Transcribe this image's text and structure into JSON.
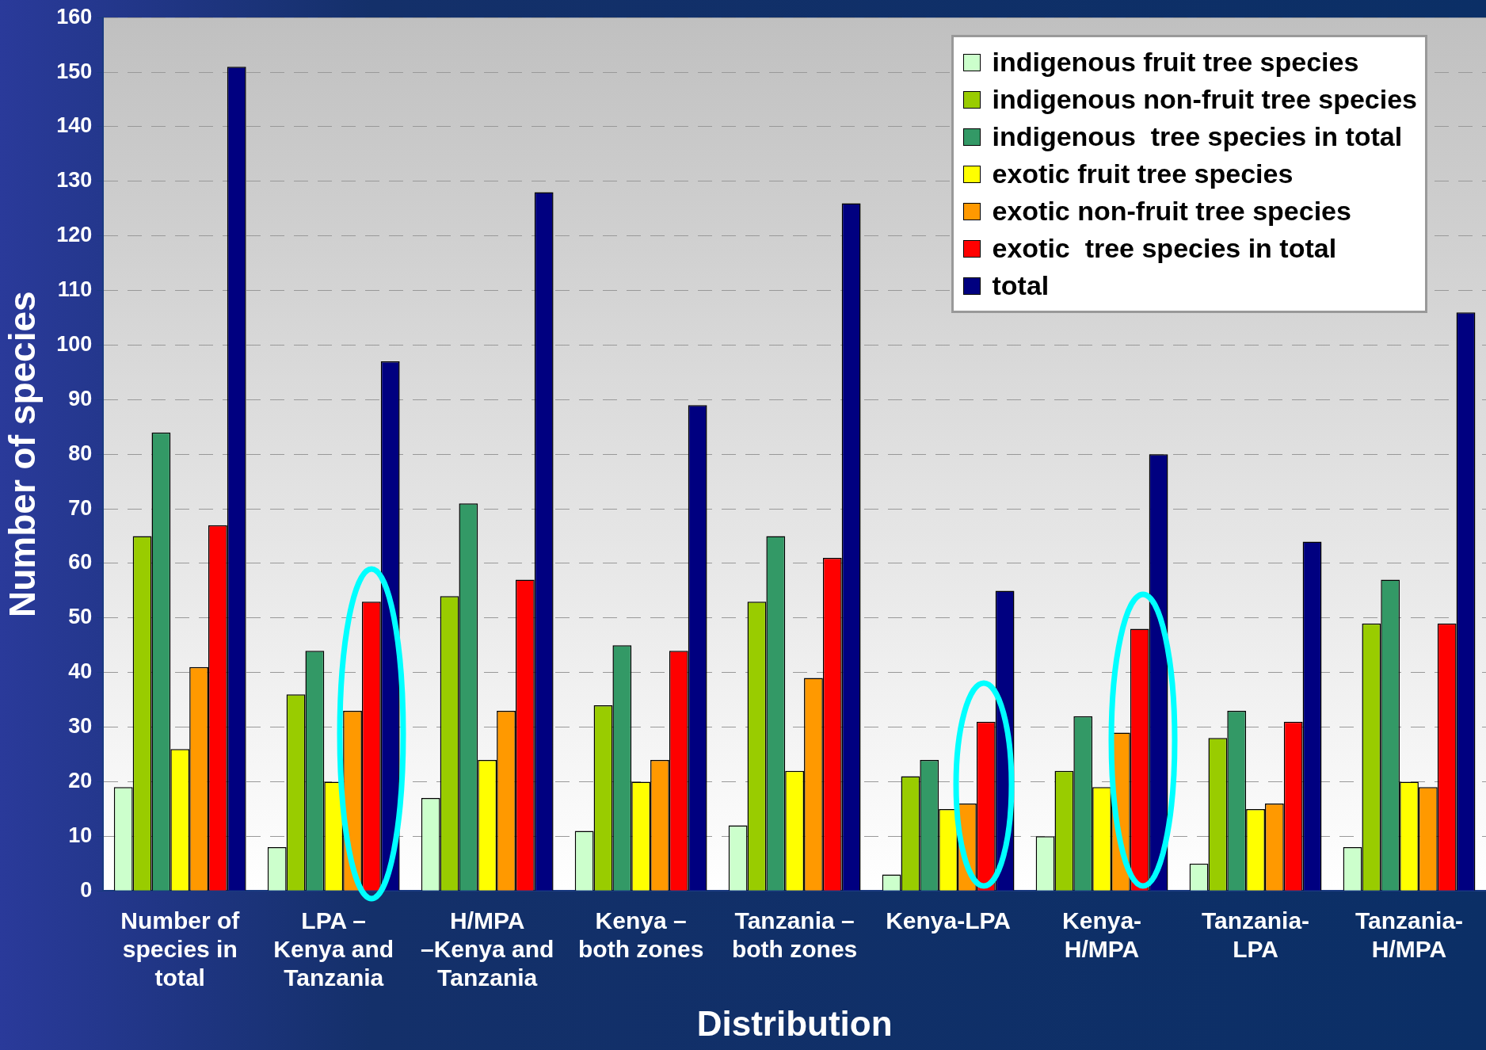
{
  "chart_data": {
    "type": "bar",
    "ylabel": "Number of species",
    "xlabel": "Distribution",
    "categories": [
      "Number of species in total",
      "LPA – Kenya and Tanzania",
      "H/MPA –Kenya and Tanzania",
      "Kenya – both zones",
      "Tanzania – both zones",
      "Kenya-LPA",
      "Kenya-H/MPA",
      "Tanzania-LPA",
      "Tanzania-H/MPA"
    ],
    "series": [
      {
        "name": "indigenous fruit tree species",
        "color": "#ccffcc",
        "values": [
          19,
          8,
          17,
          11,
          12,
          3,
          10,
          5,
          8
        ]
      },
      {
        "name": "indigenous non-fruit tree species",
        "color": "#99cc00",
        "values": [
          65,
          36,
          54,
          34,
          53,
          21,
          22,
          28,
          49
        ]
      },
      {
        "name": "indigenous  tree species in total",
        "color": "#339966",
        "values": [
          84,
          44,
          71,
          45,
          65,
          24,
          32,
          33,
          57
        ]
      },
      {
        "name": "exotic fruit tree species",
        "color": "#ffff00",
        "values": [
          26,
          20,
          24,
          20,
          22,
          15,
          19,
          15,
          20
        ]
      },
      {
        "name": "exotic non-fruit tree species",
        "color": "#ff9900",
        "values": [
          41,
          33,
          33,
          24,
          39,
          16,
          29,
          16,
          19
        ]
      },
      {
        "name": "exotic  tree species in total",
        "color": "#ff0000",
        "values": [
          67,
          53,
          57,
          44,
          61,
          31,
          48,
          31,
          49
        ]
      },
      {
        "name": "total",
        "color": "#000080",
        "values": [
          151,
          97,
          128,
          89,
          126,
          55,
          80,
          64,
          106
        ]
      }
    ],
    "ylim": [
      0,
      160
    ],
    "yticks": [
      0,
      10,
      20,
      30,
      40,
      50,
      60,
      70,
      80,
      90,
      100,
      110,
      120,
      130,
      140,
      150,
      160
    ],
    "grid": "y",
    "legend": "top right"
  }
}
